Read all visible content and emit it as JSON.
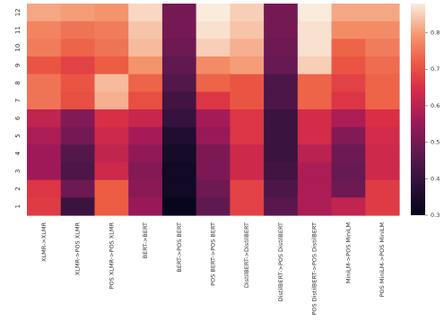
{
  "chart_data": {
    "type": "heatmap",
    "title": "",
    "xlabel": "",
    "ylabel": "",
    "x_categories": [
      "XLMR->XLMR",
      "XLMR->POS XLMR",
      "POS XLMR->POS XLMR",
      "BERT->BERT",
      "BERT->POS BERT",
      "POS BERT->POS BERT",
      "DistilBERT->DistilBERT",
      "DistilBERT->POS DistilBERT",
      "POS DistilBERT->POS DistilBERT",
      "MiniLM->POS MiniLM",
      "POS MiniLM->POS MiniLM"
    ],
    "y_categories": [
      "12",
      "11",
      "10",
      "9",
      "8",
      "7",
      "6",
      "5",
      "4",
      "3",
      "2",
      "1"
    ],
    "values": [
      [
        0.81,
        0.8,
        0.79,
        0.86,
        0.5,
        0.88,
        0.85,
        0.5,
        0.88,
        0.81,
        0.81
      ],
      [
        0.77,
        0.75,
        0.76,
        0.84,
        0.5,
        0.87,
        0.84,
        0.5,
        0.87,
        0.78,
        0.78
      ],
      [
        0.76,
        0.73,
        0.75,
        0.83,
        0.49,
        0.85,
        0.82,
        0.49,
        0.87,
        0.73,
        0.76
      ],
      [
        0.71,
        0.68,
        0.72,
        0.79,
        0.47,
        0.78,
        0.8,
        0.48,
        0.85,
        0.71,
        0.74
      ],
      [
        0.75,
        0.71,
        0.83,
        0.73,
        0.45,
        0.73,
        0.71,
        0.44,
        0.73,
        0.68,
        0.73
      ],
      [
        0.75,
        0.7,
        0.82,
        0.7,
        0.42,
        0.66,
        0.71,
        0.44,
        0.73,
        0.66,
        0.73
      ],
      [
        0.61,
        0.52,
        0.65,
        0.62,
        0.4,
        0.57,
        0.66,
        0.41,
        0.64,
        0.58,
        0.65
      ],
      [
        0.58,
        0.5,
        0.63,
        0.57,
        0.36,
        0.55,
        0.66,
        0.41,
        0.64,
        0.52,
        0.64
      ],
      [
        0.56,
        0.45,
        0.61,
        0.54,
        0.34,
        0.51,
        0.63,
        0.41,
        0.6,
        0.49,
        0.63
      ],
      [
        0.56,
        0.44,
        0.63,
        0.52,
        0.33,
        0.51,
        0.63,
        0.42,
        0.58,
        0.48,
        0.63
      ],
      [
        0.66,
        0.49,
        0.72,
        0.53,
        0.33,
        0.49,
        0.68,
        0.44,
        0.58,
        0.49,
        0.67
      ],
      [
        0.67,
        0.41,
        0.72,
        0.55,
        0.31,
        0.47,
        0.68,
        0.46,
        0.58,
        0.61,
        0.67
      ]
    ],
    "colorbar": {
      "range": [
        0.3,
        0.88
      ],
      "ticks": [
        "0.3",
        "0.4",
        "0.5",
        "0.6",
        "0.7",
        "0.8"
      ],
      "tick_values": [
        0.3,
        0.4,
        0.5,
        0.6,
        0.7,
        0.8
      ],
      "colormap": "rocket"
    },
    "grid": false,
    "legend": "colorbar-right"
  }
}
